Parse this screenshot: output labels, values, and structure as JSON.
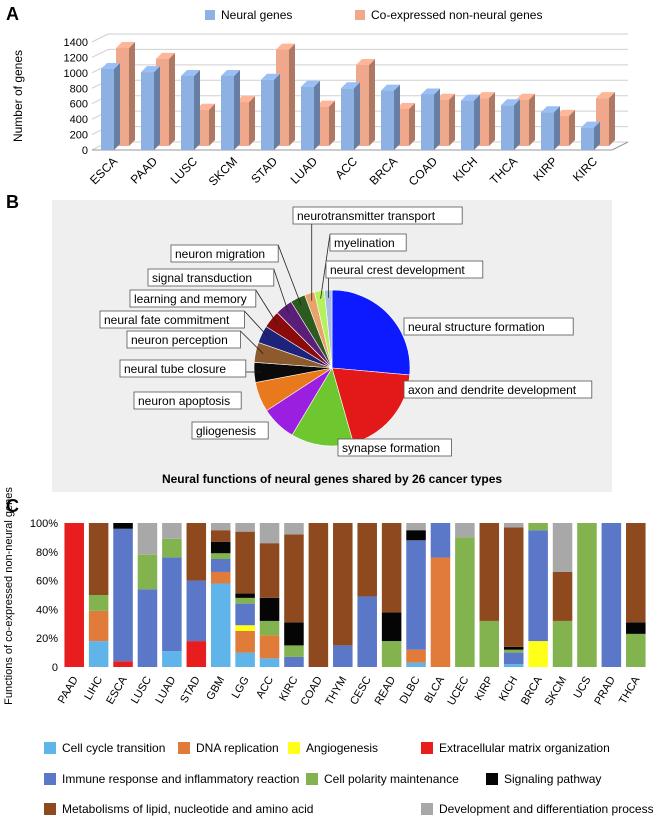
{
  "panels": {
    "a": {
      "letter": "A"
    },
    "b": {
      "letter": "B"
    },
    "c": {
      "letter": "C"
    }
  },
  "chart_data": [
    {
      "panel": "A",
      "type": "bar",
      "style": "3d",
      "ylabel": "Number of genes",
      "ylim": [
        0,
        1400
      ],
      "yticks": [
        0,
        200,
        400,
        600,
        800,
        1000,
        1200,
        1400
      ],
      "legend_position": "top",
      "categories": [
        "ESCA",
        "PAAD",
        "LUSC",
        "SKCM",
        "STAD",
        "LUAD",
        "ACC",
        "BRCA",
        "COAD",
        "KICH",
        "THCA",
        "KIRP",
        "KIRC"
      ],
      "series": [
        {
          "name": "Neural genes",
          "color": "#8eb1e3",
          "values": [
            1050,
            1010,
            960,
            960,
            910,
            820,
            800,
            770,
            720,
            640,
            580,
            490,
            290
          ]
        },
        {
          "name": "Co-expressed non-neural genes",
          "color": "#f0a88c",
          "values": [
            1270,
            1130,
            470,
            570,
            1250,
            510,
            1050,
            480,
            600,
            620,
            600,
            390,
            620
          ]
        }
      ]
    },
    {
      "panel": "B",
      "type": "pie",
      "title": "Neural functions of neural genes shared by 26 cancer types",
      "slices": [
        {
          "label": "neural structure formation",
          "value": 25.5,
          "color": "#0d1aff"
        },
        {
          "label": "axon and dendrite development",
          "value": 18.5,
          "color": "#e31919"
        },
        {
          "label": "synapse formation",
          "value": 12.5,
          "color": "#6ec72e"
        },
        {
          "label": "gliogenesis",
          "value": 7.0,
          "color": "#9b1fe0"
        },
        {
          "label": "neuron apoptosis",
          "value": 6.0,
          "color": "#e8791c"
        },
        {
          "label": "neural tube closure",
          "value": 4.0,
          "color": "#0a0a0a"
        },
        {
          "label": "neuron perception",
          "value": 4.0,
          "color": "#8c5a2d"
        },
        {
          "label": "neural fate commitment",
          "value": 3.5,
          "color": "#1d237a"
        },
        {
          "label": "learning and memory",
          "value": 3.5,
          "color": "#8b0a0a"
        },
        {
          "label": "signal transduction",
          "value": 3.5,
          "color": "#5b1e78"
        },
        {
          "label": "neuron migration",
          "value": 3.0,
          "color": "#2d5a1e"
        },
        {
          "label": "neurotransmitter transport",
          "value": 2.0,
          "color": "#e8a36a"
        },
        {
          "label": "myelination",
          "value": 2.0,
          "color": "#b3f25c"
        },
        {
          "label": "neural crest development",
          "value": 1.5,
          "color": "#a9bce8"
        }
      ]
    },
    {
      "panel": "C",
      "type": "bar",
      "stacked": true,
      "ylabel": "Functions of co-expressed non-neural genes",
      "ylim": [
        0,
        100
      ],
      "yticks": [
        "0",
        "20%",
        "40%",
        "60%",
        "80%",
        "100%"
      ],
      "legend_position": "bottom",
      "categories": [
        "PAAD",
        "LIHC",
        "ESCA",
        "LUSC",
        "LUAD",
        "STAD",
        "GBM",
        "LGG",
        "ACC",
        "KIRC",
        "COAD",
        "THYM",
        "CESC",
        "READ",
        "DLBC",
        "BLCA",
        "UCEC",
        "KIRP",
        "KICH",
        "BRCA",
        "SKCM",
        "UCS",
        "PRAD",
        "THCA"
      ],
      "series": [
        {
          "name": "Cell cycle transition",
          "color": "#5fb4ea",
          "values": [
            0,
            18,
            0,
            0,
            11,
            0,
            58,
            10,
            6,
            0,
            0,
            0,
            0,
            0,
            3,
            0,
            0,
            0,
            2,
            0,
            0,
            0,
            0,
            0
          ]
        },
        {
          "name": "DNA replication",
          "color": "#e07b39",
          "values": [
            0,
            21,
            0,
            0,
            0,
            0,
            8,
            15,
            16,
            0,
            0,
            0,
            0,
            0,
            9,
            76,
            0,
            0,
            0,
            0,
            0,
            0,
            0,
            0
          ]
        },
        {
          "name": "Angiogenesis",
          "color": "#ffff1a",
          "values": [
            0,
            0,
            0,
            0,
            0,
            0,
            0,
            4,
            0,
            0,
            0,
            0,
            0,
            0,
            0,
            0,
            0,
            0,
            0,
            18,
            0,
            0,
            0,
            0
          ]
        },
        {
          "name": "Extracellular matrix organization",
          "color": "#e81e1e",
          "values": [
            100,
            0,
            4,
            0,
            0,
            18,
            0,
            0,
            0,
            0,
            0,
            0,
            0,
            0,
            0,
            0,
            0,
            0,
            0,
            0,
            0,
            0,
            0,
            0
          ]
        },
        {
          "name": "Immune response and inflammatory reaction",
          "color": "#5a77c8",
          "values": [
            0,
            0,
            92,
            54,
            65,
            42,
            9,
            15,
            0,
            7,
            0,
            15,
            49,
            0,
            76,
            24,
            0,
            0,
            8,
            77,
            0,
            0,
            100,
            0
          ]
        },
        {
          "name": "Cell polarity maintenance",
          "color": "#82b34f",
          "values": [
            0,
            11,
            0,
            24,
            13,
            0,
            4,
            4,
            10,
            8,
            0,
            0,
            0,
            18,
            0,
            0,
            90,
            32,
            2,
            5,
            32,
            100,
            0,
            23
          ]
        },
        {
          "name": "Signaling pathway",
          "color": "#050505",
          "values": [
            0,
            0,
            4,
            0,
            0,
            0,
            8,
            3,
            16,
            16,
            0,
            0,
            0,
            20,
            7,
            0,
            0,
            0,
            2,
            0,
            0,
            0,
            0,
            8
          ]
        },
        {
          "name": "Metabolisms of lipid, nucleotide and amino acid",
          "color": "#8e4a1e",
          "values": [
            0,
            50,
            0,
            0,
            0,
            40,
            8,
            43,
            38,
            61,
            100,
            85,
            51,
            62,
            0,
            0,
            0,
            68,
            83,
            0,
            34,
            0,
            0,
            69
          ]
        },
        {
          "name": "Development and differentiation processes",
          "color": "#a8a8a8",
          "values": [
            0,
            0,
            0,
            22,
            11,
            0,
            5,
            6,
            14,
            8,
            0,
            0,
            0,
            0,
            5,
            0,
            10,
            0,
            3,
            0,
            34,
            0,
            0,
            0
          ]
        }
      ]
    }
  ]
}
